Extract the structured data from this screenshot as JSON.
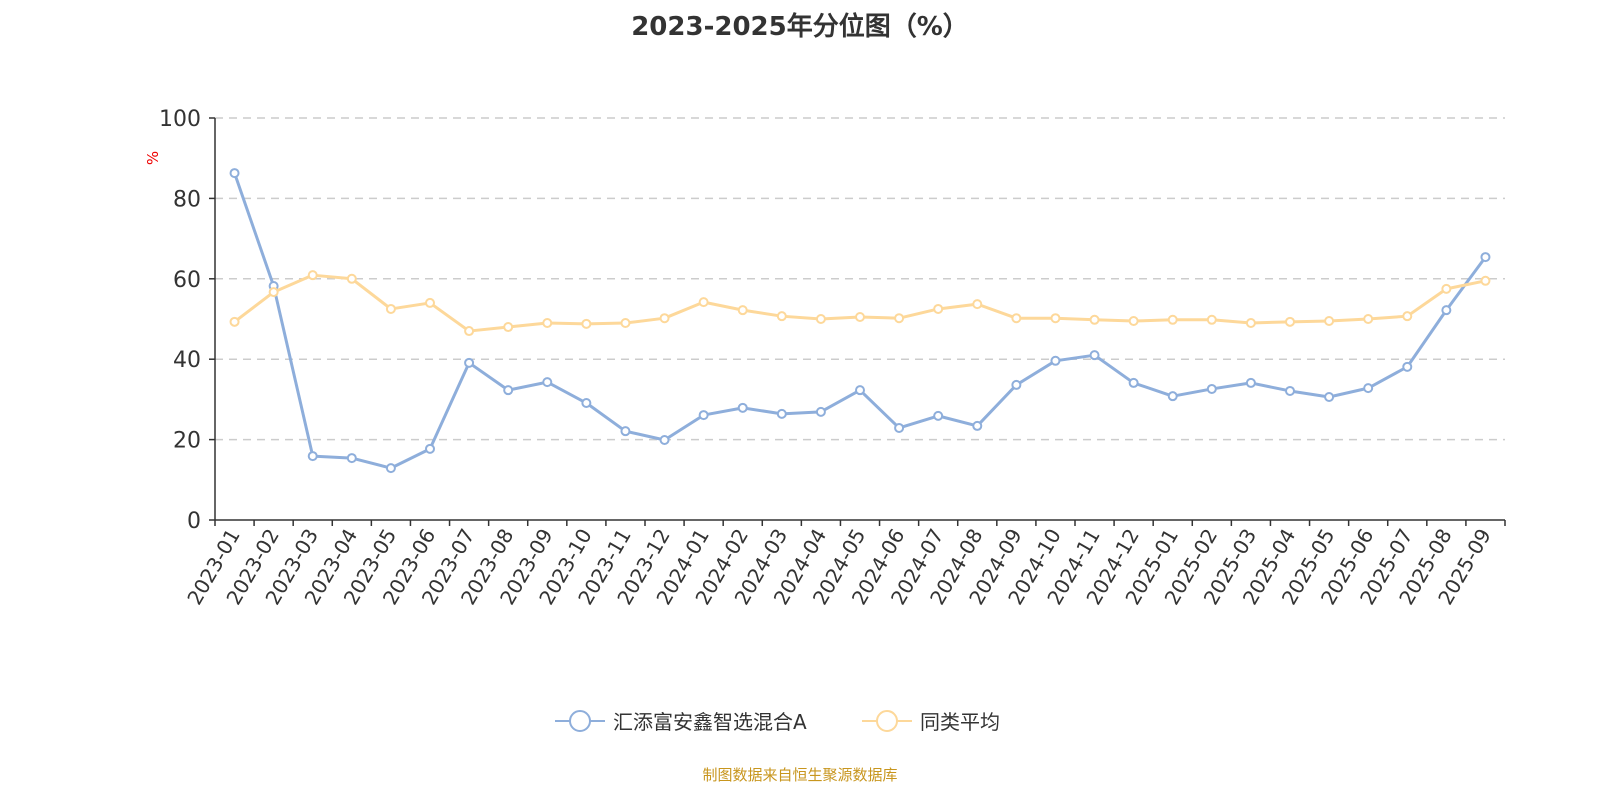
{
  "chart_data": {
    "type": "line",
    "title": "2023-2025年分位图（%）",
    "ylabel": "%",
    "xlabel": "",
    "ylim": [
      0,
      100
    ],
    "yticks": [
      0,
      20,
      40,
      60,
      80,
      100
    ],
    "grid": true,
    "legend_position": "bottom",
    "categories": [
      "2023-01",
      "2023-02",
      "2023-03",
      "2023-04",
      "2023-05",
      "2023-06",
      "2023-07",
      "2023-08",
      "2023-09",
      "2023-10",
      "2023-11",
      "2023-12",
      "2024-01",
      "2024-02",
      "2024-03",
      "2024-04",
      "2024-05",
      "2024-06",
      "2024-07",
      "2024-08",
      "2024-09",
      "2024-10",
      "2024-11",
      "2024-12",
      "2025-01",
      "2025-02",
      "2025-03",
      "2025-04",
      "2025-05",
      "2025-06",
      "2025-07",
      "2025-08",
      "2025-09"
    ],
    "series": [
      {
        "name": "汇添富安鑫智选混合A",
        "color": "#8eaedb",
        "values": [
          86.3,
          58.2,
          15.9,
          15.4,
          12.9,
          17.7,
          39.1,
          32.3,
          34.3,
          29.1,
          22.1,
          19.9,
          26.1,
          27.9,
          26.4,
          26.9,
          32.3,
          22.9,
          25.9,
          23.4,
          33.6,
          39.6,
          41.0,
          34.1,
          30.8,
          32.6,
          34.1,
          32.1,
          30.6,
          32.8,
          38.1,
          52.2,
          65.4
        ]
      },
      {
        "name": "同类平均",
        "color": "#fdd89a",
        "values": [
          49.3,
          56.7,
          60.9,
          60.0,
          52.5,
          54.0,
          47.0,
          48.0,
          49.0,
          48.8,
          49.0,
          50.2,
          54.2,
          52.2,
          50.7,
          50.0,
          50.5,
          50.2,
          52.5,
          53.7,
          50.2,
          50.2,
          49.8,
          49.5,
          49.8,
          49.8,
          49.0,
          49.3,
          49.5,
          50.0,
          50.7,
          57.5,
          59.5
        ]
      }
    ]
  },
  "source": "制图数据来自恒生聚源数据库"
}
